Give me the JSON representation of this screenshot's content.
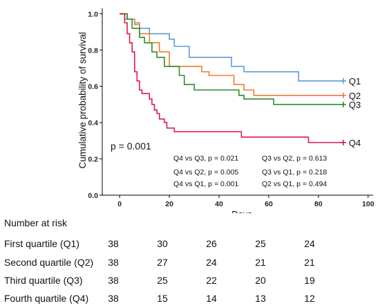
{
  "chart_data": {
    "type": "line",
    "subtype": "kaplan-meier",
    "xlabel": "Days",
    "ylabel": "Cumulative probability of survival",
    "xlim": [
      -7,
      102
    ],
    "ylim": [
      0,
      1.03
    ],
    "xticks": [
      0,
      20,
      40,
      60,
      80,
      100
    ],
    "yticks": [
      0.0,
      0.2,
      0.4,
      0.6,
      0.8,
      1.0
    ],
    "xtick_labels": [
      "0",
      "20",
      "40",
      "60",
      "80",
      "100"
    ],
    "ytick_labels": [
      "0.0",
      "0.2",
      "0.4",
      "0.6",
      "0.8",
      "1.0"
    ],
    "grid": false,
    "legend": "line-end labels",
    "series": [
      {
        "name": "Q1",
        "color": "#5b9bd5",
        "points": [
          [
            0,
            1.0
          ],
          [
            2,
            1.0
          ],
          [
            2,
            0.97
          ],
          [
            6,
            0.97
          ],
          [
            6,
            0.95
          ],
          [
            8,
            0.95
          ],
          [
            8,
            0.92
          ],
          [
            12,
            0.92
          ],
          [
            12,
            0.89
          ],
          [
            20,
            0.89
          ],
          [
            20,
            0.86
          ],
          [
            22,
            0.86
          ],
          [
            22,
            0.82
          ],
          [
            28,
            0.82
          ],
          [
            28,
            0.76
          ],
          [
            45,
            0.76
          ],
          [
            45,
            0.71
          ],
          [
            50,
            0.71
          ],
          [
            50,
            0.68
          ],
          [
            72,
            0.68
          ],
          [
            72,
            0.63
          ],
          [
            90,
            0.63
          ]
        ]
      },
      {
        "name": "Q2",
        "color": "#ed7d31",
        "points": [
          [
            0,
            1.0
          ],
          [
            3,
            1.0
          ],
          [
            3,
            0.97
          ],
          [
            6,
            0.97
          ],
          [
            6,
            0.94
          ],
          [
            8,
            0.94
          ],
          [
            8,
            0.89
          ],
          [
            12,
            0.89
          ],
          [
            12,
            0.84
          ],
          [
            16,
            0.84
          ],
          [
            16,
            0.79
          ],
          [
            20,
            0.79
          ],
          [
            20,
            0.71
          ],
          [
            33,
            0.71
          ],
          [
            33,
            0.68
          ],
          [
            36,
            0.68
          ],
          [
            36,
            0.66
          ],
          [
            46,
            0.66
          ],
          [
            46,
            0.61
          ],
          [
            50,
            0.61
          ],
          [
            50,
            0.58
          ],
          [
            54,
            0.58
          ],
          [
            54,
            0.55
          ],
          [
            90,
            0.55
          ]
        ]
      },
      {
        "name": "Q3",
        "color": "#2e8b2e",
        "points": [
          [
            0,
            1.0
          ],
          [
            3,
            1.0
          ],
          [
            3,
            0.97
          ],
          [
            5,
            0.97
          ],
          [
            5,
            0.92
          ],
          [
            8,
            0.92
          ],
          [
            8,
            0.87
          ],
          [
            10,
            0.87
          ],
          [
            10,
            0.84
          ],
          [
            13,
            0.84
          ],
          [
            13,
            0.79
          ],
          [
            15,
            0.79
          ],
          [
            15,
            0.76
          ],
          [
            18,
            0.76
          ],
          [
            18,
            0.71
          ],
          [
            24,
            0.71
          ],
          [
            24,
            0.66
          ],
          [
            26,
            0.66
          ],
          [
            26,
            0.61
          ],
          [
            30,
            0.61
          ],
          [
            30,
            0.58
          ],
          [
            48,
            0.58
          ],
          [
            48,
            0.55
          ],
          [
            50,
            0.55
          ],
          [
            50,
            0.53
          ],
          [
            62,
            0.53
          ],
          [
            62,
            0.5
          ],
          [
            90,
            0.5
          ]
        ]
      },
      {
        "name": "Q4",
        "color": "#d91a4a",
        "points": [
          [
            0,
            1.0
          ],
          [
            2,
            1.0
          ],
          [
            2,
            0.95
          ],
          [
            3,
            0.95
          ],
          [
            3,
            0.89
          ],
          [
            4,
            0.89
          ],
          [
            4,
            0.84
          ],
          [
            5,
            0.84
          ],
          [
            5,
            0.79
          ],
          [
            6,
            0.79
          ],
          [
            6,
            0.68
          ],
          [
            7,
            0.68
          ],
          [
            7,
            0.63
          ],
          [
            8,
            0.63
          ],
          [
            8,
            0.58
          ],
          [
            9,
            0.58
          ],
          [
            9,
            0.56
          ],
          [
            12,
            0.56
          ],
          [
            12,
            0.53
          ],
          [
            13,
            0.53
          ],
          [
            13,
            0.5
          ],
          [
            14,
            0.5
          ],
          [
            14,
            0.47
          ],
          [
            15,
            0.47
          ],
          [
            15,
            0.45
          ],
          [
            16,
            0.45
          ],
          [
            16,
            0.42
          ],
          [
            18,
            0.42
          ],
          [
            18,
            0.4
          ],
          [
            19,
            0.4
          ],
          [
            19,
            0.37
          ],
          [
            22,
            0.37
          ],
          [
            22,
            0.35
          ],
          [
            49,
            0.35
          ],
          [
            49,
            0.32
          ],
          [
            76,
            0.32
          ],
          [
            76,
            0.29
          ],
          [
            90,
            0.29
          ]
        ]
      }
    ],
    "overall_p": "p = 0.001",
    "comparisons": [
      {
        "label": "Q4 vs Q3",
        "p": "p = 0.021"
      },
      {
        "label": "Q4 vs Q2",
        "p": "p = 0.005"
      },
      {
        "label": "Q4 vs Q1",
        "p": "p = 0.001"
      },
      {
        "label": "Q3 vs Q2",
        "p": "p = 0.613"
      },
      {
        "label": "Q3 vs Q1",
        "p": "p = 0.218"
      },
      {
        "label": "Q2 vs Q1",
        "p": "p = 0.494"
      }
    ]
  },
  "risk_table": {
    "title": "Number at risk",
    "rows": [
      {
        "label": "First quartile (Q1)",
        "values": [
          "38",
          "30",
          "26",
          "25",
          "24"
        ]
      },
      {
        "label": "Second quartile (Q2)",
        "values": [
          "38",
          "27",
          "24",
          "21",
          "21"
        ]
      },
      {
        "label": "Third quartile (Q3)",
        "values": [
          "38",
          "25",
          "22",
          "20",
          "19"
        ]
      },
      {
        "label": "Fourth quartile (Q4)",
        "values": [
          "38",
          "15",
          "14",
          "13",
          "12"
        ]
      }
    ]
  }
}
